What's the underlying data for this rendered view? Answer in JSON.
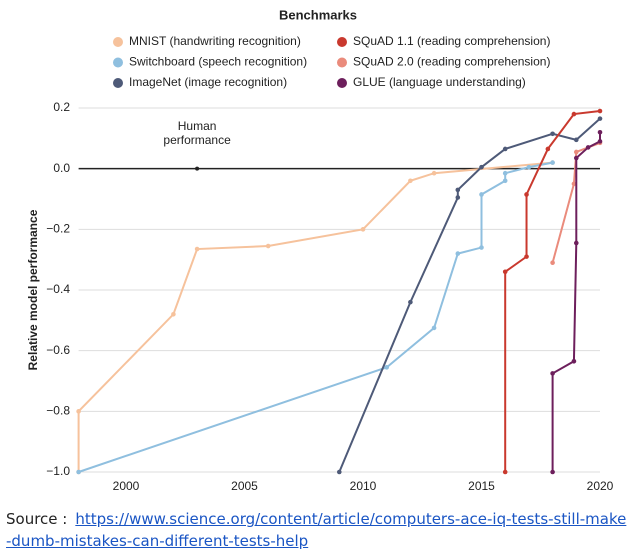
{
  "chart_data": {
    "type": "line",
    "legend_title": "Benchmarks",
    "y_label": "Relative model performance",
    "xlim": [
      1998,
      2020
    ],
    "ylim": [
      -1.0,
      0.2
    ],
    "xticks": [
      2000,
      2005,
      2010,
      2015,
      2020
    ],
    "yticks": [
      0.2,
      {
        "value": 0,
        "label": "0.0"
      },
      {
        "value": -0.2,
        "label": "−0.2"
      },
      {
        "value": -0.4,
        "label": "−0.4"
      },
      {
        "value": -0.6,
        "label": "−0.6"
      },
      {
        "value": -0.8,
        "label": "−0.8"
      },
      {
        "value": -1.0,
        "label": "−1.0"
      }
    ],
    "grid": true,
    "annotation": {
      "lines": [
        "Human",
        "performance"
      ],
      "x": 2003,
      "y": 0
    },
    "series": [
      {
        "name": "MNIST (handwriting recognition)",
        "color": "#f6c29c",
        "x": [
          1998,
          1998,
          2002,
          2003,
          2006,
          2010,
          2012,
          2013,
          2018
        ],
        "values": [
          -1.0,
          -0.8,
          -0.48,
          -0.265,
          -0.255,
          -0.2,
          -0.04,
          -0.015,
          0.02
        ]
      },
      {
        "name": "Switchboard (speech recognition)",
        "color": "#8fbfdf",
        "x": [
          1998,
          2011,
          2013,
          2014,
          2015,
          2015,
          2016,
          2016,
          2017,
          2018
        ],
        "values": [
          -1.0,
          -0.655,
          -0.525,
          -0.28,
          -0.26,
          -0.085,
          -0.04,
          -0.015,
          0.005,
          0.02
        ]
      },
      {
        "name": "ImageNet (image recognition)",
        "color": "#4e5a78",
        "x": [
          2009,
          2012,
          2014,
          2014,
          2015,
          2016,
          2018,
          2019,
          2020
        ],
        "values": [
          -1.0,
          -0.44,
          -0.095,
          -0.07,
          0.005,
          0.065,
          0.115,
          0.095,
          0.165
        ]
      },
      {
        "name": "SQuAD 1.1 (reading comprehension)",
        "color": "#c9392e",
        "x": [
          2016,
          2016,
          2016.9,
          2016.9,
          2017.8,
          2018.9,
          2020
        ],
        "values": [
          -1.0,
          -0.34,
          -0.29,
          -0.085,
          0.065,
          0.18,
          0.19
        ]
      },
      {
        "name": "SQuAD 2.0 (reading comprehension)",
        "color": "#ea8b7c",
        "x": [
          2018,
          2018.9,
          2019,
          2020
        ],
        "values": [
          -0.31,
          -0.05,
          0.055,
          0.085
        ]
      },
      {
        "name": "GLUE (language understanding)",
        "color": "#6d1f5c",
        "x": [
          2018,
          2018,
          2018.9,
          2019,
          2019,
          2019.5,
          2020,
          2020
        ],
        "values": [
          -1.0,
          -0.675,
          -0.635,
          -0.245,
          0.035,
          0.07,
          0.09,
          0.12
        ]
      }
    ]
  },
  "source": {
    "label": "Source :",
    "link": "https://www.science.org/content/article/computers-ace-iq-tests-still-make-dumb-mistakes-can-different-tests-help"
  }
}
